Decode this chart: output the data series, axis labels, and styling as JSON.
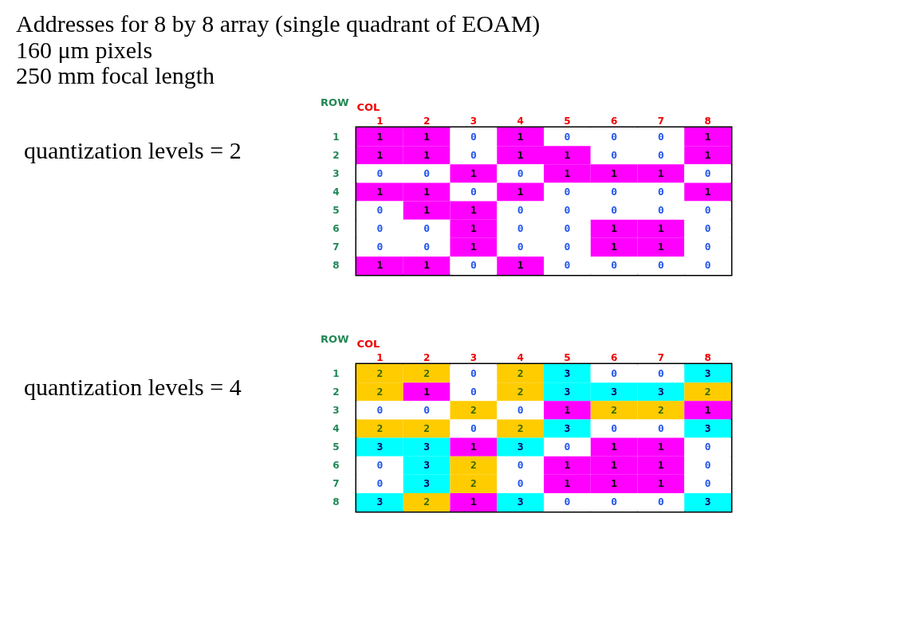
{
  "chart_data": [
    {
      "type": "heatmap",
      "title": "Addresses for 8 by 8 array (single quadrant of EOAM)",
      "subtitle": [
        "160 μm pixels",
        "250 mm focal length"
      ],
      "annotations": [
        "quantization levels = 2"
      ],
      "xlabel": "COL",
      "ylabel": "ROW",
      "data_labels": true,
      "colors": [
        "#ffffff",
        "#ff00ff"
      ],
      "categories": [
        "1",
        "2",
        "3",
        "4",
        "5",
        "6",
        "7",
        "8"
      ],
      "y_categories": [
        "1",
        "2",
        "3",
        "4",
        "5",
        "6",
        "7",
        "8"
      ],
      "cells": [
        [
          1,
          1,
          0,
          1,
          0,
          0,
          0,
          1
        ],
        [
          1,
          1,
          0,
          1,
          1,
          0,
          0,
          1
        ],
        [
          0,
          0,
          1,
          0,
          1,
          1,
          1,
          0
        ],
        [
          1,
          1,
          0,
          1,
          0,
          0,
          0,
          1
        ],
        [
          0,
          1,
          1,
          0,
          0,
          0,
          0,
          0
        ],
        [
          0,
          0,
          1,
          0,
          0,
          1,
          1,
          0
        ],
        [
          0,
          0,
          1,
          0,
          0,
          1,
          1,
          0
        ],
        [
          1,
          1,
          0,
          1,
          0,
          0,
          0,
          0
        ]
      ]
    },
    {
      "type": "heatmap",
      "annotations": [
        "quantization levels = 4"
      ],
      "xlabel": "COL",
      "ylabel": "ROW",
      "data_labels": true,
      "colors": [
        "#ffffff",
        "#ff00ff",
        "#ffcc00",
        "#00ffff"
      ],
      "categories": [
        "1",
        "2",
        "3",
        "4",
        "5",
        "6",
        "7",
        "8"
      ],
      "y_categories": [
        "1",
        "2",
        "3",
        "4",
        "5",
        "6",
        "7",
        "8"
      ],
      "cells": [
        [
          2,
          2,
          0,
          2,
          3,
          0,
          0,
          3
        ],
        [
          2,
          1,
          0,
          2,
          3,
          3,
          3,
          2
        ],
        [
          0,
          0,
          2,
          0,
          1,
          2,
          2,
          1
        ],
        [
          2,
          2,
          0,
          2,
          3,
          0,
          0,
          3
        ],
        [
          3,
          3,
          1,
          3,
          0,
          1,
          1,
          0
        ],
        [
          0,
          3,
          2,
          0,
          1,
          1,
          1,
          0
        ],
        [
          0,
          3,
          2,
          0,
          1,
          1,
          1,
          0
        ],
        [
          3,
          2,
          1,
          3,
          0,
          0,
          0,
          3
        ]
      ]
    }
  ]
}
